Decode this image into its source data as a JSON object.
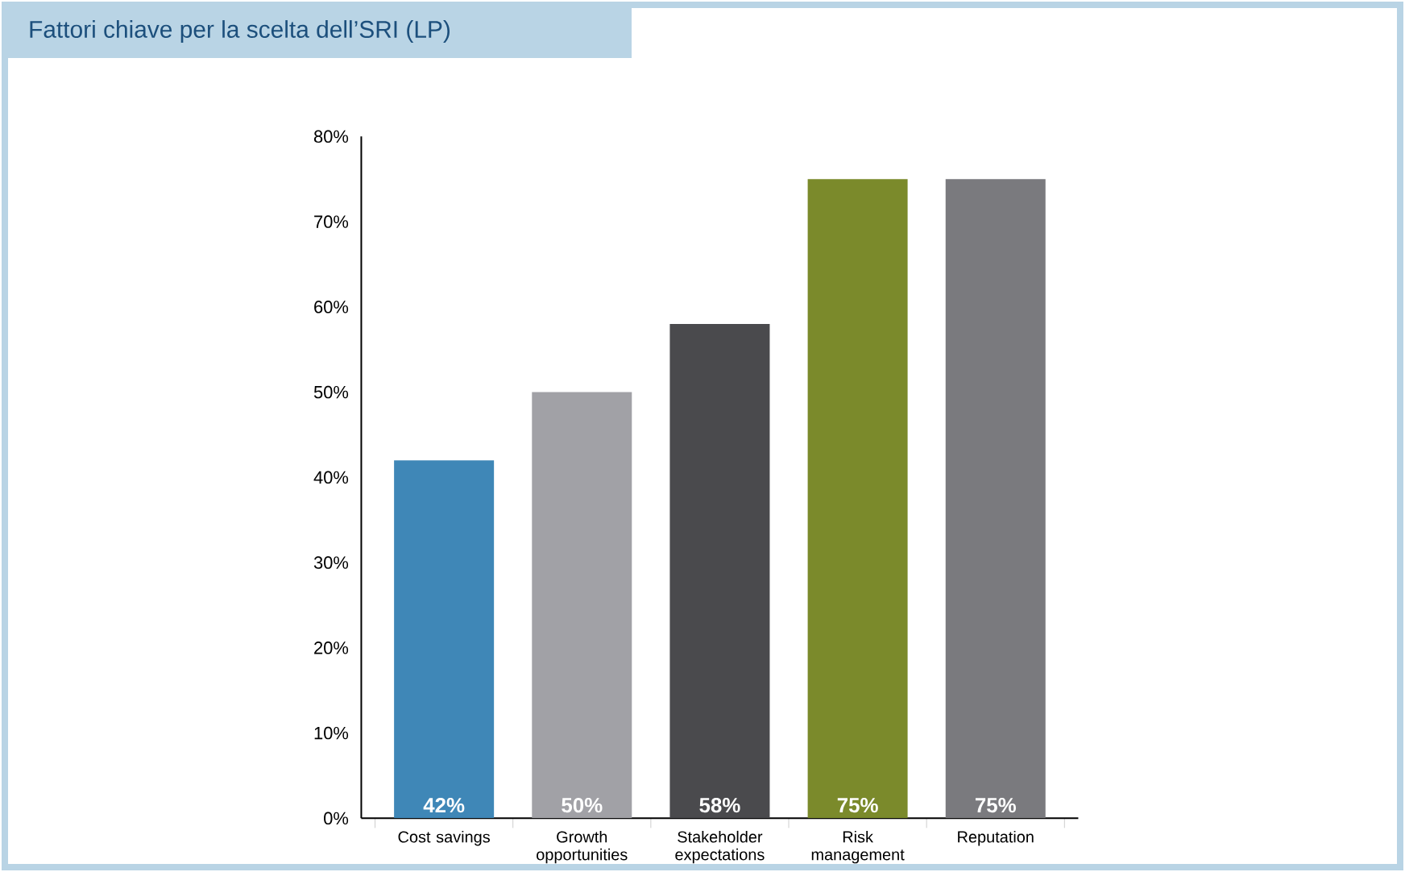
{
  "chart_data": {
    "type": "bar",
    "title": "Fattori chiave per la scelta dell’SRI (LP)",
    "categories": [
      "Cost savings",
      "Growth opportunities",
      "Stakeholder expectations",
      "Risk management",
      "Reputation"
    ],
    "values": [
      42,
      50,
      58,
      75,
      75
    ],
    "colors": [
      "#3f87b7",
      "#a1a1a6",
      "#4a4a4d",
      "#7b8a2b",
      "#7a7a7e"
    ],
    "value_labels": [
      "42%",
      "50%",
      "58%",
      "75%",
      "75%"
    ],
    "ylim": [
      0,
      80
    ],
    "yticks": [
      {
        "value": 0,
        "label": "0%"
      },
      {
        "value": 10,
        "label": "10%"
      },
      {
        "value": 20,
        "label": "20%"
      },
      {
        "value": 30,
        "label": "30%"
      },
      {
        "value": 40,
        "label": "40%"
      },
      {
        "value": 50,
        "label": "50%"
      },
      {
        "value": 60,
        "label": "60%"
      },
      {
        "value": 70,
        "label": "70%"
      },
      {
        "value": 80,
        "label": "80%"
      }
    ],
    "grid": false
  }
}
